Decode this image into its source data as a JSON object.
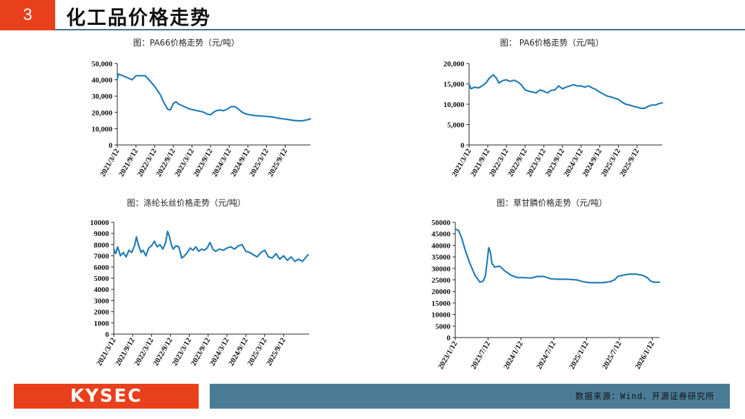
{
  "header": {
    "number": "3",
    "title": "化工品价格走势"
  },
  "footer": {
    "logo": "KYSEC",
    "source": "数据来源：Wind、开源证券研究所"
  },
  "colors": {
    "accent": "#e8401c",
    "line": "#1f7bb6",
    "bar": "#4a7c96"
  },
  "chart_data": [
    {
      "type": "line",
      "title": "图：PA66价格走势（元/吨）",
      "ylim": [
        0,
        50000
      ],
      "yticks": [
        "50,000",
        "40,000",
        "30,000",
        "20,000",
        "10,000",
        "0"
      ],
      "xticks": [
        "2021/3/12",
        "2021/9/12",
        "2022/3/12",
        "2022/9/12",
        "2023/3/12",
        "2023/9/12",
        "2024/3/12",
        "2024/9/12",
        "2025/3/12",
        "2025/9/12"
      ],
      "x_range": [
        0,
        10.35
      ],
      "series": [
        {
          "values": [
            [
              0,
              40000
            ],
            [
              0.05,
              43500
            ],
            [
              0.3,
              42500
            ],
            [
              0.6,
              41000
            ],
            [
              0.8,
              40000
            ],
            [
              1.0,
              42500
            ],
            [
              1.3,
              42500
            ],
            [
              1.5,
              42500
            ],
            [
              1.7,
              40000
            ],
            [
              2.0,
              36000
            ],
            [
              2.3,
              31000
            ],
            [
              2.5,
              26000
            ],
            [
              2.7,
              22000
            ],
            [
              2.85,
              21500
            ],
            [
              3.0,
              25500
            ],
            [
              3.15,
              26500
            ],
            [
              3.3,
              25000
            ],
            [
              3.5,
              24000
            ],
            [
              3.7,
              23000
            ],
            [
              3.9,
              22000
            ],
            [
              4.1,
              21500
            ],
            [
              4.3,
              21000
            ],
            [
              4.5,
              20500
            ],
            [
              4.65,
              20000
            ],
            [
              4.8,
              19000
            ],
            [
              5.0,
              18500
            ],
            [
              5.15,
              20000
            ],
            [
              5.3,
              21000
            ],
            [
              5.5,
              21500
            ],
            [
              5.7,
              21000
            ],
            [
              5.9,
              22000
            ],
            [
              6.1,
              23500
            ],
            [
              6.3,
              23500
            ],
            [
              6.5,
              22000
            ],
            [
              6.7,
              20000
            ],
            [
              6.9,
              19000
            ],
            [
              7.1,
              18500
            ],
            [
              7.4,
              18000
            ],
            [
              7.7,
              17800
            ],
            [
              8.0,
              17500
            ],
            [
              8.3,
              17200
            ],
            [
              8.6,
              16500
            ],
            [
              8.9,
              16000
            ],
            [
              9.2,
              15500
            ],
            [
              9.5,
              15000
            ],
            [
              9.8,
              14800
            ],
            [
              10.0,
              15000
            ],
            [
              10.2,
              15500
            ],
            [
              10.35,
              16000
            ]
          ]
        }
      ]
    },
    {
      "type": "line",
      "title": "图： PA6价格走势（元/吨）",
      "ylim": [
        0,
        20000
      ],
      "yticks": [
        "20,000",
        "15,000",
        "10,000",
        "5,000",
        "0"
      ],
      "xticks": [
        "2021/3/12",
        "2021/9/12",
        "2022/3/12",
        "2022/9/12",
        "2023/3/12",
        "2023/9/12",
        "2024/3/12",
        "2024/9/12",
        "2025/3/12",
        "2025/9/12"
      ],
      "x_range": [
        0,
        10.35
      ],
      "series": [
        {
          "values": [
            [
              0,
              15000
            ],
            [
              0.1,
              13800
            ],
            [
              0.3,
              14200
            ],
            [
              0.5,
              14000
            ],
            [
              0.7,
              14500
            ],
            [
              0.9,
              15200
            ],
            [
              1.1,
              16500
            ],
            [
              1.3,
              17200
            ],
            [
              1.45,
              16500
            ],
            [
              1.6,
              15200
            ],
            [
              1.8,
              15800
            ],
            [
              2.0,
              16000
            ],
            [
              2.2,
              15600
            ],
            [
              2.4,
              15900
            ],
            [
              2.6,
              15500
            ],
            [
              2.8,
              14800
            ],
            [
              3.0,
              13500
            ],
            [
              3.2,
              13200
            ],
            [
              3.4,
              13000
            ],
            [
              3.6,
              12800
            ],
            [
              3.8,
              13500
            ],
            [
              4.0,
              13200
            ],
            [
              4.2,
              12800
            ],
            [
              4.4,
              13400
            ],
            [
              4.6,
              13500
            ],
            [
              4.8,
              14500
            ],
            [
              5.0,
              13800
            ],
            [
              5.2,
              14200
            ],
            [
              5.4,
              14500
            ],
            [
              5.6,
              14800
            ],
            [
              5.8,
              14500
            ],
            [
              6.0,
              14500
            ],
            [
              6.2,
              14200
            ],
            [
              6.4,
              14500
            ],
            [
              6.6,
              14000
            ],
            [
              6.8,
              13600
            ],
            [
              7.0,
              13000
            ],
            [
              7.2,
              12500
            ],
            [
              7.4,
              12000
            ],
            [
              7.6,
              11800
            ],
            [
              7.8,
              11500
            ],
            [
              8.0,
              11200
            ],
            [
              8.2,
              10500
            ],
            [
              8.4,
              10000
            ],
            [
              8.6,
              9800
            ],
            [
              8.8,
              9500
            ],
            [
              9.0,
              9300
            ],
            [
              9.2,
              9000
            ],
            [
              9.4,
              9000
            ],
            [
              9.6,
              9500
            ],
            [
              9.8,
              9800
            ],
            [
              10.0,
              9800
            ],
            [
              10.2,
              10200
            ],
            [
              10.35,
              10300
            ]
          ]
        }
      ]
    },
    {
      "type": "line",
      "title": "图：涤纶长丝价格走势（元/吨）",
      "ylim": [
        0,
        10000
      ],
      "yticks": [
        "10000",
        "9000",
        "8000",
        "7000",
        "6000",
        "5000",
        "4000",
        "3000",
        "2000",
        "1000",
        "0"
      ],
      "xticks": [
        "2021/3/12",
        "2021/9/12",
        "2022/3/12",
        "2022/9/12",
        "2023/3/12",
        "2023/9/12",
        "2024/3/12",
        "2024/9/12",
        "2025/3/12",
        "2025/9/12"
      ],
      "x_range": [
        0,
        10.35
      ],
      "series": [
        {
          "values": [
            [
              0,
              7600
            ],
            [
              0.1,
              7200
            ],
            [
              0.2,
              7800
            ],
            [
              0.35,
              7000
            ],
            [
              0.5,
              7300
            ],
            [
              0.65,
              6900
            ],
            [
              0.8,
              7500
            ],
            [
              0.95,
              7300
            ],
            [
              1.1,
              7900
            ],
            [
              1.2,
              8700
            ],
            [
              1.3,
              8000
            ],
            [
              1.45,
              7300
            ],
            [
              1.55,
              7500
            ],
            [
              1.7,
              7000
            ],
            [
              1.85,
              7700
            ],
            [
              2.0,
              7900
            ],
            [
              2.15,
              8300
            ],
            [
              2.3,
              7800
            ],
            [
              2.45,
              8000
            ],
            [
              2.6,
              7600
            ],
            [
              2.75,
              8200
            ],
            [
              2.85,
              9200
            ],
            [
              2.95,
              8700
            ],
            [
              3.05,
              8000
            ],
            [
              3.15,
              7600
            ],
            [
              3.3,
              7900
            ],
            [
              3.45,
              7800
            ],
            [
              3.6,
              6800
            ],
            [
              3.75,
              7000
            ],
            [
              3.9,
              7300
            ],
            [
              4.05,
              7700
            ],
            [
              4.2,
              7500
            ],
            [
              4.35,
              7800
            ],
            [
              4.5,
              7400
            ],
            [
              4.65,
              7600
            ],
            [
              4.8,
              7500
            ],
            [
              4.95,
              7700
            ],
            [
              5.1,
              8200
            ],
            [
              5.25,
              7600
            ],
            [
              5.4,
              7400
            ],
            [
              5.6,
              7600
            ],
            [
              5.8,
              7500
            ],
            [
              6.0,
              7700
            ],
            [
              6.2,
              7800
            ],
            [
              6.4,
              7600
            ],
            [
              6.6,
              7900
            ],
            [
              6.8,
              8000
            ],
            [
              7.0,
              7400
            ],
            [
              7.2,
              7300
            ],
            [
              7.4,
              7100
            ],
            [
              7.6,
              6900
            ],
            [
              7.8,
              7300
            ],
            [
              8.0,
              7500
            ],
            [
              8.2,
              6900
            ],
            [
              8.4,
              6800
            ],
            [
              8.6,
              7200
            ],
            [
              8.8,
              6700
            ],
            [
              9.0,
              7000
            ],
            [
              9.2,
              6600
            ],
            [
              9.4,
              6900
            ],
            [
              9.6,
              6500
            ],
            [
              9.8,
              6700
            ],
            [
              10.0,
              6500
            ],
            [
              10.2,
              6900
            ],
            [
              10.3,
              7100
            ]
          ]
        }
      ]
    },
    {
      "type": "line",
      "title": "图：草甘膦价格走势（元/吨）",
      "ylim": [
        0,
        50000
      ],
      "yticks": [
        "50000",
        "45000",
        "40000",
        "35000",
        "30000",
        "25000",
        "20000",
        "15000",
        "10000",
        "5000",
        "0"
      ],
      "xticks": [
        "2023/1/12",
        "2023/7/12",
        "2024/1/12",
        "2024/7/12",
        "2025/1/12",
        "2025/7/12",
        "2026/1/12"
      ],
      "x_range": [
        0,
        6.22
      ],
      "series": [
        {
          "values": [
            [
              0,
              47000
            ],
            [
              0.1,
              46500
            ],
            [
              0.2,
              43000
            ],
            [
              0.3,
              38000
            ],
            [
              0.45,
              32000
            ],
            [
              0.6,
              27000
            ],
            [
              0.75,
              24000
            ],
            [
              0.85,
              24500
            ],
            [
              0.92,
              27000
            ],
            [
              0.97,
              33000
            ],
            [
              1.02,
              39000
            ],
            [
              1.07,
              37000
            ],
            [
              1.12,
              32000
            ],
            [
              1.2,
              30500
            ],
            [
              1.35,
              31000
            ],
            [
              1.5,
              29000
            ],
            [
              1.7,
              27000
            ],
            [
              1.9,
              26000
            ],
            [
              2.1,
              26000
            ],
            [
              2.3,
              25800
            ],
            [
              2.5,
              26500
            ],
            [
              2.7,
              26500
            ],
            [
              2.9,
              25500
            ],
            [
              3.1,
              25300
            ],
            [
              3.3,
              25300
            ],
            [
              3.5,
              25200
            ],
            [
              3.7,
              25000
            ],
            [
              3.9,
              24200
            ],
            [
              4.1,
              23800
            ],
            [
              4.3,
              23800
            ],
            [
              4.5,
              23800
            ],
            [
              4.7,
              24200
            ],
            [
              4.85,
              25000
            ],
            [
              4.95,
              26500
            ],
            [
              5.1,
              27000
            ],
            [
              5.3,
              27500
            ],
            [
              5.5,
              27500
            ],
            [
              5.7,
              27000
            ],
            [
              5.85,
              26000
            ],
            [
              5.95,
              24500
            ],
            [
              6.05,
              24000
            ],
            [
              6.22,
              24000
            ]
          ]
        }
      ]
    }
  ]
}
